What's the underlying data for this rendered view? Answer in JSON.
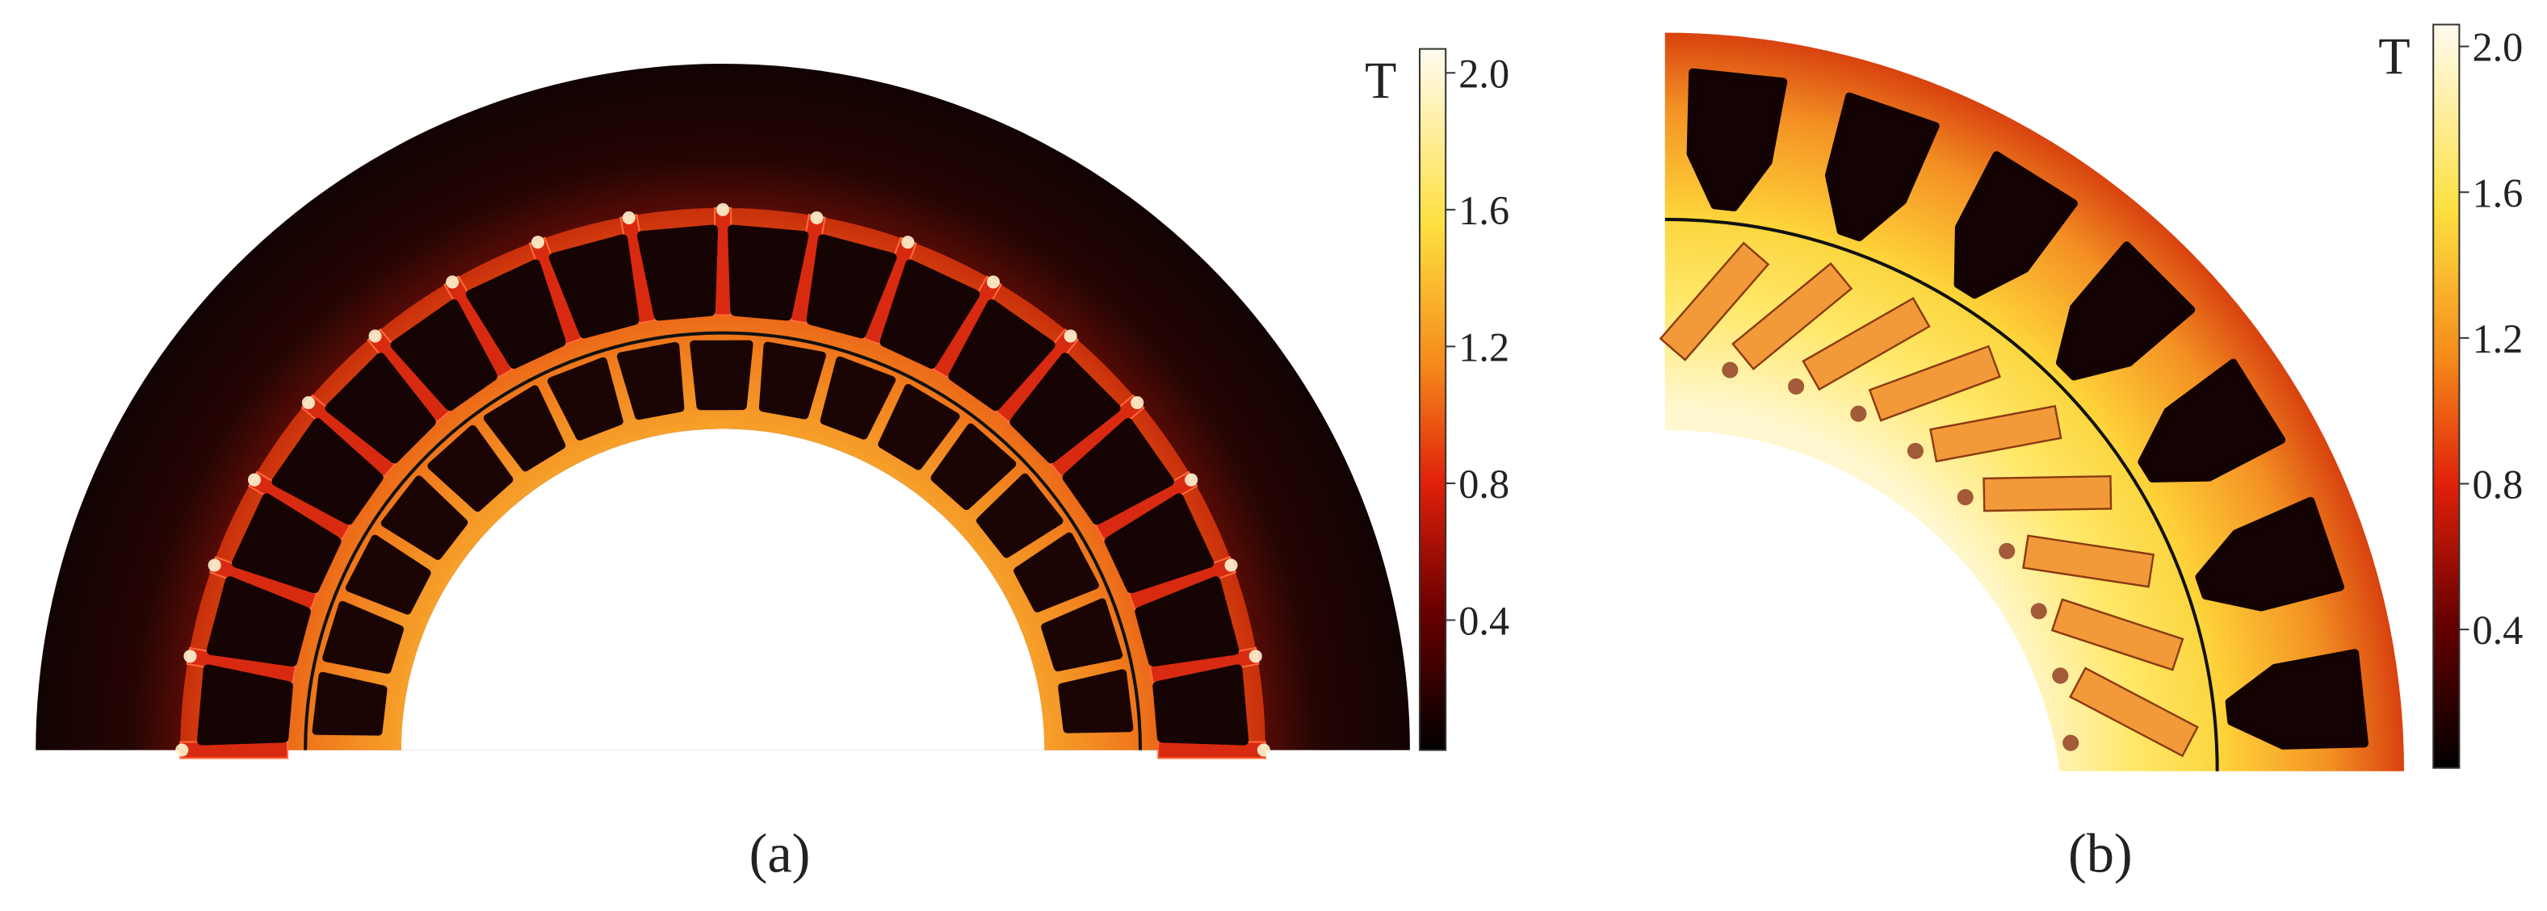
{
  "panels": [
    {
      "caption": "(a)",
      "colorbar": {
        "unit": "T",
        "lim": [
          0.02,
          2.07
        ],
        "ticks": [
          {
            "value": 2,
            "label": "2.0"
          },
          {
            "value": 1.6,
            "label": "1.6"
          },
          {
            "value": 1.2,
            "label": "1.2"
          },
          {
            "value": 0.8,
            "label": "0.8"
          },
          {
            "value": 0.4,
            "label": "0.4"
          }
        ]
      }
    },
    {
      "caption": "(b)",
      "colorbar": {
        "unit": "T",
        "lim": [
          0.02,
          2.06
        ],
        "ticks": [
          {
            "value": 2,
            "label": "2.0"
          },
          {
            "value": 1.6,
            "label": "1.6"
          },
          {
            "value": 1.2,
            "label": "1.2"
          },
          {
            "value": 0.8,
            "label": "0.8"
          },
          {
            "value": 0.4,
            "label": "0.4"
          }
        ]
      }
    }
  ]
}
